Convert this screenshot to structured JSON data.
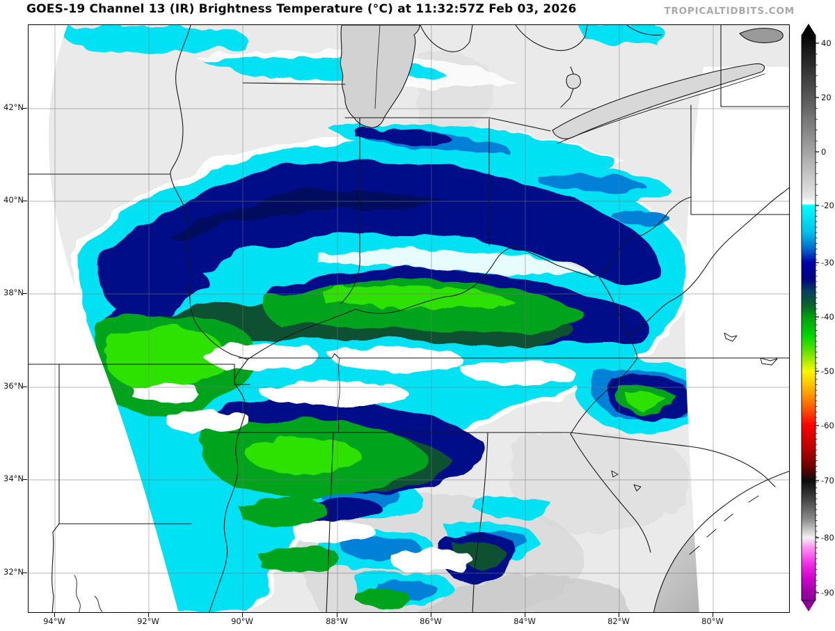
{
  "header": {
    "title": "GOES-19 Channel 13 (IR) Brightness Temperature (°C) at 11:32:57Z Feb 03, 2026",
    "watermark": "TROPICALTIDBITS.COM"
  },
  "map": {
    "lat_tick_labels": [
      "42°N",
      "40°N",
      "38°N",
      "36°N",
      "34°N",
      "32°N"
    ],
    "lon_tick_labels": [
      "94°W",
      "92°W",
      "90°W",
      "88°W",
      "86°W",
      "84°W",
      "82°W",
      "80°W"
    ]
  },
  "colorbar": {
    "tick_labels": [
      "40",
      "20",
      "0",
      "-20",
      "-30",
      "-40",
      "-50",
      "-60",
      "-70",
      "-80",
      "-90"
    ],
    "unit": "°C",
    "palette_anchors": {
      "warm_top": "#000000",
      "gray_zero": "#a4a4a4",
      "white_minus20": "#ffffff",
      "cyan_minus20": "#00ffff",
      "navy_minus30": "#000080",
      "green_minus40": "#00a010",
      "yellow_minus50": "#f8f800",
      "red_minus60": "#f80000",
      "black_minus70": "#0c0c0c",
      "white_minus80": "#f2f2f2",
      "magenta_minus85": "#f22ce8",
      "purple_minus90": "#8e009c"
    }
  },
  "colors": {
    "land_background": "#eaeaea",
    "no_data": "#ffffff",
    "watermark_gray": "#a9a9a9",
    "grid_gray": "#777777",
    "border_black": "#161616"
  }
}
